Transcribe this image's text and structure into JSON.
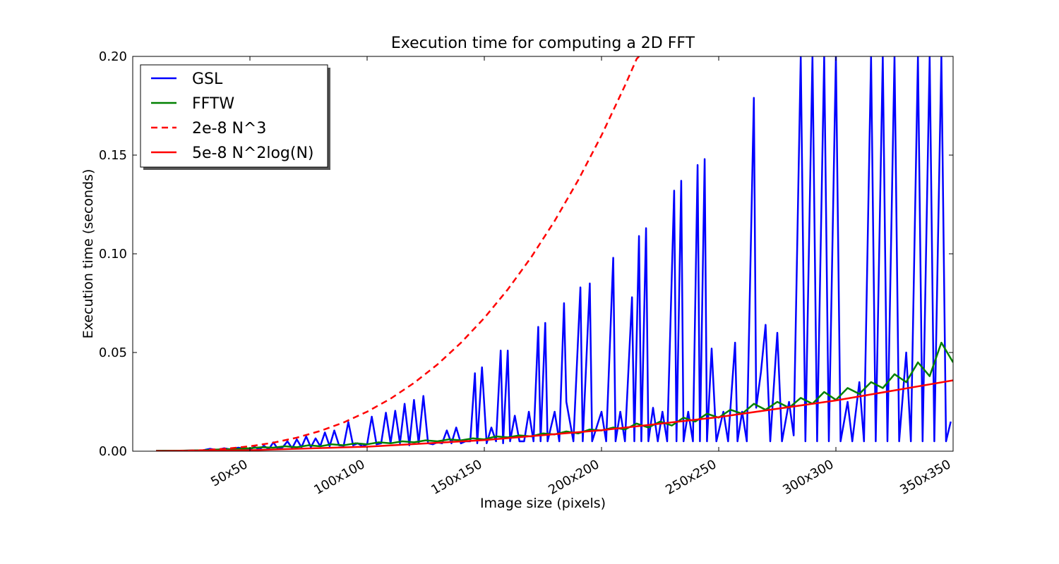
{
  "chart_data": {
    "type": "line",
    "title": "Execution time for computing a 2D FFT",
    "xlabel": "Image size (pixels)",
    "ylabel": "Execution time (seconds)",
    "xlim": [
      0,
      350
    ],
    "ylim": [
      0,
      0.2
    ],
    "grid": false,
    "legend_position": "top-left",
    "x_ticks": [
      {
        "value": 50,
        "label": "50x50"
      },
      {
        "value": 100,
        "label": "100x100"
      },
      {
        "value": 150,
        "label": "150x150"
      },
      {
        "value": 200,
        "label": "200x200"
      },
      {
        "value": 250,
        "label": "250x250"
      },
      {
        "value": 300,
        "label": "300x300"
      },
      {
        "value": 350,
        "label": "350x350"
      }
    ],
    "y_ticks": [
      {
        "value": 0.0,
        "label": "0.00"
      },
      {
        "value": 0.05,
        "label": "0.05"
      },
      {
        "value": 0.1,
        "label": "0.10"
      },
      {
        "value": 0.15,
        "label": "0.15"
      },
      {
        "value": 0.2,
        "label": "0.20"
      }
    ],
    "series": [
      {
        "name": "GSL",
        "color": "#0000ff",
        "style": "solid",
        "points": [
          [
            10,
            0.0002
          ],
          [
            14,
            0.0003
          ],
          [
            18,
            0.0002
          ],
          [
            22,
            0.0003
          ],
          [
            26,
            0.0004
          ],
          [
            30,
            0.0005
          ],
          [
            33,
            0.0012
          ],
          [
            36,
            0.0006
          ],
          [
            39,
            0.0015
          ],
          [
            42,
            0.0008
          ],
          [
            45,
            0.0018
          ],
          [
            48,
            0.0012
          ],
          [
            50,
            0.0008
          ],
          [
            52,
            0.0022
          ],
          [
            54,
            0.0008
          ],
          [
            56,
            0.0028
          ],
          [
            58,
            0.001
          ],
          [
            60,
            0.0045
          ],
          [
            62,
            0.001
          ],
          [
            64,
            0.002
          ],
          [
            66,
            0.005
          ],
          [
            68,
            0.0015
          ],
          [
            70,
            0.006
          ],
          [
            72,
            0.002
          ],
          [
            74,
            0.0075
          ],
          [
            76,
            0.002
          ],
          [
            78,
            0.0065
          ],
          [
            80,
            0.0025
          ],
          [
            82,
            0.0095
          ],
          [
            84,
            0.0025
          ],
          [
            86,
            0.0105
          ],
          [
            88,
            0.003
          ],
          [
            90,
            0.0028
          ],
          [
            92,
            0.0148
          ],
          [
            94,
            0.003
          ],
          [
            96,
            0.004
          ],
          [
            98,
            0.0025
          ],
          [
            100,
            0.0035
          ],
          [
            102,
            0.0175
          ],
          [
            104,
            0.0035
          ],
          [
            106,
            0.004
          ],
          [
            108,
            0.0195
          ],
          [
            110,
            0.004
          ],
          [
            112,
            0.0205
          ],
          [
            114,
            0.004
          ],
          [
            116,
            0.024
          ],
          [
            118,
            0.003
          ],
          [
            120,
            0.026
          ],
          [
            122,
            0.004
          ],
          [
            124,
            0.028
          ],
          [
            126,
            0.004
          ],
          [
            128,
            0.0035
          ],
          [
            130,
            0.0045
          ],
          [
            132,
            0.004
          ],
          [
            134,
            0.0105
          ],
          [
            136,
            0.004
          ],
          [
            138,
            0.012
          ],
          [
            140,
            0.004
          ],
          [
            142,
            0.005
          ],
          [
            144,
            0.005
          ],
          [
            146,
            0.0395
          ],
          [
            147,
            0.004
          ],
          [
            149,
            0.0425
          ],
          [
            151,
            0.004
          ],
          [
            153,
            0.012
          ],
          [
            155,
            0.005
          ],
          [
            157,
            0.051
          ],
          [
            158,
            0.004
          ],
          [
            160,
            0.051
          ],
          [
            161,
            0.005
          ],
          [
            163,
            0.018
          ],
          [
            165,
            0.005
          ],
          [
            167,
            0.005
          ],
          [
            169,
            0.02
          ],
          [
            171,
            0.005
          ],
          [
            173,
            0.063
          ],
          [
            174,
            0.005
          ],
          [
            176,
            0.065
          ],
          [
            177,
            0.005
          ],
          [
            180,
            0.02
          ],
          [
            182,
            0.005
          ],
          [
            184,
            0.075
          ],
          [
            185,
            0.025
          ],
          [
            188,
            0.005
          ],
          [
            191,
            0.083
          ],
          [
            192,
            0.005
          ],
          [
            195,
            0.085
          ],
          [
            196,
            0.005
          ],
          [
            200,
            0.02
          ],
          [
            202,
            0.005
          ],
          [
            205,
            0.098
          ],
          [
            206,
            0.005
          ],
          [
            208,
            0.02
          ],
          [
            210,
            0.005
          ],
          [
            213,
            0.078
          ],
          [
            214,
            0.005
          ],
          [
            216,
            0.109
          ],
          [
            217,
            0.005
          ],
          [
            219,
            0.113
          ],
          [
            220,
            0.005
          ],
          [
            222,
            0.022
          ],
          [
            224,
            0.005
          ],
          [
            226,
            0.02
          ],
          [
            228,
            0.005
          ],
          [
            231,
            0.132
          ],
          [
            232,
            0.005
          ],
          [
            234,
            0.137
          ],
          [
            235,
            0.005
          ],
          [
            237,
            0.02
          ],
          [
            239,
            0.005
          ],
          [
            241,
            0.145
          ],
          [
            242,
            0.005
          ],
          [
            244,
            0.148
          ],
          [
            245,
            0.005
          ],
          [
            247,
            0.052
          ],
          [
            249,
            0.005
          ],
          [
            252,
            0.02
          ],
          [
            254,
            0.005
          ],
          [
            257,
            0.055
          ],
          [
            258,
            0.005
          ],
          [
            260,
            0.02
          ],
          [
            262,
            0.005
          ],
          [
            265,
            0.179
          ],
          [
            266,
            0.022
          ],
          [
            268,
            0.04
          ],
          [
            270,
            0.064
          ],
          [
            272,
            0.005
          ],
          [
            275,
            0.06
          ],
          [
            277,
            0.005
          ],
          [
            280,
            0.025
          ],
          [
            282,
            0.008
          ],
          [
            285,
            0.2
          ],
          [
            287,
            0.005
          ],
          [
            290,
            0.2
          ],
          [
            292,
            0.005
          ],
          [
            295,
            0.2
          ],
          [
            297,
            0.005
          ],
          [
            300,
            0.2
          ],
          [
            302,
            0.005
          ],
          [
            305,
            0.025
          ],
          [
            307,
            0.005
          ],
          [
            310,
            0.035
          ],
          [
            312,
            0.005
          ],
          [
            315,
            0.2
          ],
          [
            317,
            0.005
          ],
          [
            320,
            0.2
          ],
          [
            322,
            0.005
          ],
          [
            325,
            0.2
          ],
          [
            327,
            0.005
          ],
          [
            330,
            0.05
          ],
          [
            332,
            0.005
          ],
          [
            335,
            0.2
          ],
          [
            337,
            0.005
          ],
          [
            340,
            0.2
          ],
          [
            342,
            0.005
          ],
          [
            345,
            0.2
          ],
          [
            347,
            0.005
          ],
          [
            349,
            0.015
          ]
        ]
      },
      {
        "name": "FFTW",
        "color": "#008000",
        "style": "solid",
        "points": [
          [
            10,
            0.0002
          ],
          [
            20,
            0.0003
          ],
          [
            30,
            0.0005
          ],
          [
            35,
            0.0008
          ],
          [
            40,
            0.001
          ],
          [
            45,
            0.0012
          ],
          [
            50,
            0.0015
          ],
          [
            55,
            0.002
          ],
          [
            60,
            0.0018
          ],
          [
            65,
            0.0025
          ],
          [
            70,
            0.002
          ],
          [
            75,
            0.003
          ],
          [
            80,
            0.0025
          ],
          [
            85,
            0.0035
          ],
          [
            90,
            0.003
          ],
          [
            95,
            0.004
          ],
          [
            100,
            0.0035
          ],
          [
            105,
            0.0045
          ],
          [
            110,
            0.004
          ],
          [
            115,
            0.005
          ],
          [
            120,
            0.0045
          ],
          [
            125,
            0.0055
          ],
          [
            130,
            0.005
          ],
          [
            135,
            0.006
          ],
          [
            140,
            0.0055
          ],
          [
            145,
            0.0065
          ],
          [
            150,
            0.006
          ],
          [
            155,
            0.0075
          ],
          [
            160,
            0.007
          ],
          [
            165,
            0.008
          ],
          [
            170,
            0.0075
          ],
          [
            175,
            0.009
          ],
          [
            180,
            0.0085
          ],
          [
            185,
            0.01
          ],
          [
            190,
            0.009
          ],
          [
            195,
            0.011
          ],
          [
            200,
            0.0105
          ],
          [
            205,
            0.012
          ],
          [
            210,
            0.011
          ],
          [
            215,
            0.014
          ],
          [
            220,
            0.012
          ],
          [
            225,
            0.015
          ],
          [
            230,
            0.013
          ],
          [
            235,
            0.017
          ],
          [
            240,
            0.015
          ],
          [
            245,
            0.019
          ],
          [
            250,
            0.017
          ],
          [
            255,
            0.021
          ],
          [
            260,
            0.019
          ],
          [
            265,
            0.024
          ],
          [
            270,
            0.021
          ],
          [
            275,
            0.025
          ],
          [
            280,
            0.022
          ],
          [
            285,
            0.027
          ],
          [
            290,
            0.024
          ],
          [
            295,
            0.03
          ],
          [
            300,
            0.026
          ],
          [
            305,
            0.032
          ],
          [
            310,
            0.029
          ],
          [
            315,
            0.035
          ],
          [
            320,
            0.032
          ],
          [
            325,
            0.039
          ],
          [
            330,
            0.035
          ],
          [
            335,
            0.045
          ],
          [
            340,
            0.038
          ],
          [
            345,
            0.055
          ],
          [
            350,
            0.045
          ]
        ]
      },
      {
        "name": "2e-8 N^3",
        "color": "#ff0000",
        "style": "dashed",
        "points": [
          [
            10,
            2e-05
          ],
          [
            20,
            0.00016
          ],
          [
            30,
            0.00054
          ],
          [
            40,
            0.00128
          ],
          [
            50,
            0.0025
          ],
          [
            60,
            0.00432
          ],
          [
            70,
            0.00686
          ],
          [
            80,
            0.01024
          ],
          [
            90,
            0.01458
          ],
          [
            100,
            0.02
          ],
          [
            110,
            0.02662
          ],
          [
            120,
            0.03456
          ],
          [
            130,
            0.04394
          ],
          [
            140,
            0.05488
          ],
          [
            150,
            0.0675
          ],
          [
            160,
            0.08192
          ],
          [
            170,
            0.09826
          ],
          [
            180,
            0.11664
          ],
          [
            190,
            0.13718
          ],
          [
            200,
            0.16
          ],
          [
            210,
            0.18522
          ],
          [
            215,
            0.19876
          ],
          [
            216,
            0.2
          ]
        ]
      },
      {
        "name": "5e-8 N^2log(N)",
        "color": "#ff0000",
        "style": "solid",
        "points": [
          [
            10,
            1e-05
          ],
          [
            50,
            0.00049
          ],
          [
            100,
            0.0023
          ],
          [
            150,
            0.0056
          ],
          [
            200,
            0.0106
          ],
          [
            250,
            0.0173
          ],
          [
            300,
            0.0257
          ],
          [
            350,
            0.0359
          ]
        ]
      }
    ]
  }
}
